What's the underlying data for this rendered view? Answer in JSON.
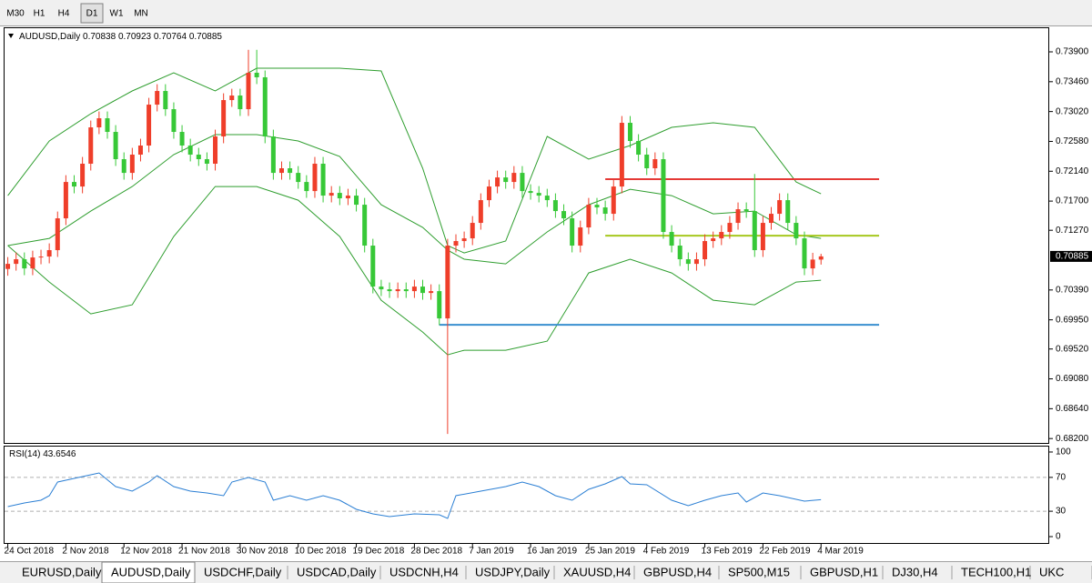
{
  "toolbar": {
    "timeframes": [
      "M30",
      "H1",
      "H4",
      "D1",
      "W1",
      "MN"
    ],
    "active": 3
  },
  "chart_data": [
    {
      "type": "candlestick",
      "title": "AUDUSD,Daily",
      "colors": {
        "up": "#ef3e2a",
        "down": "#37c837"
      },
      "candles": [
        [
          0.707,
          0.70875,
          0.706,
          0.70775
        ],
        [
          0.70775,
          0.70943,
          0.70675,
          0.70843
        ],
        [
          0.70843,
          0.70943,
          0.70608,
          0.70708
        ],
        [
          0.70708,
          0.70969,
          0.70608,
          0.70869
        ],
        [
          0.70869,
          0.70983,
          0.70769,
          0.70883
        ],
        [
          0.70883,
          0.71077,
          0.70783,
          0.70977
        ],
        [
          0.70977,
          0.71546,
          0.70877,
          0.71446
        ],
        [
          0.71446,
          0.72082,
          0.71346,
          0.71982
        ],
        [
          0.71982,
          0.72082,
          0.71815,
          0.71915
        ],
        [
          0.71915,
          0.72351,
          0.71815,
          0.72251
        ],
        [
          0.72251,
          0.72887,
          0.72151,
          0.72787
        ],
        [
          0.72787,
          0.73021,
          0.72687,
          0.72921
        ],
        [
          0.72921,
          0.73021,
          0.7262,
          0.7272
        ],
        [
          0.7272,
          0.7282,
          0.72218,
          0.72318
        ],
        [
          0.72318,
          0.72418,
          0.72016,
          0.72116
        ],
        [
          0.72116,
          0.72485,
          0.72016,
          0.72385
        ],
        [
          0.72385,
          0.72619,
          0.72285,
          0.72519
        ],
        [
          0.72519,
          0.73222,
          0.72419,
          0.73122
        ],
        [
          0.73122,
          0.73423,
          0.73022,
          0.73323
        ],
        [
          0.73323,
          0.73423,
          0.72955,
          0.73055
        ],
        [
          0.73055,
          0.73155,
          0.7262,
          0.7272
        ],
        [
          0.7272,
          0.7282,
          0.72419,
          0.72519
        ],
        [
          0.72519,
          0.72619,
          0.72285,
          0.72385
        ],
        [
          0.72385,
          0.72485,
          0.72218,
          0.72318
        ],
        [
          0.72318,
          0.72418,
          0.72151,
          0.72251
        ],
        [
          0.72251,
          0.72753,
          0.72151,
          0.72653
        ],
        [
          0.72653,
          0.73289,
          0.72553,
          0.73189
        ],
        [
          0.73189,
          0.73356,
          0.73089,
          0.73256
        ],
        [
          0.73256,
          0.73356,
          0.72955,
          0.73055
        ],
        [
          0.73055,
          0.7393,
          0.72955,
          0.73592
        ],
        [
          0.73592,
          0.7393,
          0.73425,
          0.73525
        ],
        [
          0.73525,
          0.73625,
          0.72553,
          0.72653
        ],
        [
          0.72653,
          0.72753,
          0.72016,
          0.72116
        ],
        [
          0.72116,
          0.72284,
          0.72016,
          0.72184
        ],
        [
          0.72184,
          0.72284,
          0.72016,
          0.72116
        ],
        [
          0.72116,
          0.72216,
          0.71882,
          0.71982
        ],
        [
          0.71982,
          0.72082,
          0.71748,
          0.71848
        ],
        [
          0.71848,
          0.72351,
          0.71748,
          0.72251
        ],
        [
          0.72251,
          0.72351,
          0.71681,
          0.71781
        ],
        [
          0.71781,
          0.71921,
          0.71681,
          0.71821
        ],
        [
          0.71821,
          0.71921,
          0.71641,
          0.71741
        ],
        [
          0.71741,
          0.71881,
          0.71641,
          0.71781
        ],
        [
          0.71781,
          0.71881,
          0.71547,
          0.71647
        ],
        [
          0.71647,
          0.71747,
          0.70944,
          0.71044
        ],
        [
          0.71044,
          0.71144,
          0.7034,
          0.7044
        ],
        [
          0.7044,
          0.7054,
          0.703,
          0.704
        ],
        [
          0.704,
          0.705,
          0.70273,
          0.70373
        ],
        [
          0.70373,
          0.705,
          0.70273,
          0.704
        ],
        [
          0.704,
          0.705,
          0.70273,
          0.70373
        ],
        [
          0.70373,
          0.7054,
          0.70273,
          0.7044
        ],
        [
          0.7044,
          0.7054,
          0.70246,
          0.70346
        ],
        [
          0.70346,
          0.70473,
          0.70246,
          0.70373
        ],
        [
          0.70373,
          0.70473,
          0.69871,
          0.69971
        ],
        [
          0.69971,
          0.71144,
          0.68268,
          0.71044
        ],
        [
          0.71044,
          0.71211,
          0.70944,
          0.71111
        ],
        [
          0.71111,
          0.71251,
          0.71011,
          0.71151
        ],
        [
          0.71151,
          0.71479,
          0.71051,
          0.71379
        ],
        [
          0.71379,
          0.71814,
          0.71279,
          0.71714
        ],
        [
          0.71714,
          0.72015,
          0.71614,
          0.71915
        ],
        [
          0.71915,
          0.72149,
          0.71815,
          0.72049
        ],
        [
          0.72049,
          0.72149,
          0.71882,
          0.71982
        ],
        [
          0.71982,
          0.72216,
          0.71882,
          0.72116
        ],
        [
          0.72116,
          0.72216,
          0.71748,
          0.71848
        ],
        [
          0.71848,
          0.71948,
          0.71721,
          0.71821
        ],
        [
          0.71821,
          0.71921,
          0.71681,
          0.71781
        ],
        [
          0.71781,
          0.71881,
          0.71614,
          0.71714
        ],
        [
          0.71714,
          0.71814,
          0.71453,
          0.71553
        ],
        [
          0.71553,
          0.71653,
          0.71346,
          0.71446
        ],
        [
          0.71446,
          0.71546,
          0.70944,
          0.71044
        ],
        [
          0.71044,
          0.71412,
          0.70944,
          0.71312
        ],
        [
          0.71312,
          0.71747,
          0.71212,
          0.71647
        ],
        [
          0.71647,
          0.71747,
          0.71507,
          0.71607
        ],
        [
          0.71607,
          0.71707,
          0.71413,
          0.71513
        ],
        [
          0.71513,
          0.72015,
          0.71413,
          0.71915
        ],
        [
          0.71915,
          0.72954,
          0.71815,
          0.72854
        ],
        [
          0.72854,
          0.72954,
          0.72486,
          0.72586
        ],
        [
          0.72586,
          0.72686,
          0.72285,
          0.72385
        ],
        [
          0.72385,
          0.72485,
          0.72084,
          0.72184
        ],
        [
          0.72184,
          0.72418,
          0.72084,
          0.72318
        ],
        [
          0.72318,
          0.72418,
          0.71145,
          0.71245
        ],
        [
          0.71245,
          0.71345,
          0.70944,
          0.71044
        ],
        [
          0.71044,
          0.71144,
          0.70743,
          0.70843
        ],
        [
          0.70843,
          0.70943,
          0.70675,
          0.70775
        ],
        [
          0.70775,
          0.70943,
          0.70675,
          0.70843
        ],
        [
          0.70843,
          0.71211,
          0.70743,
          0.71111
        ],
        [
          0.71111,
          0.71251,
          0.71011,
          0.71151
        ],
        [
          0.71151,
          0.71345,
          0.71051,
          0.71245
        ],
        [
          0.71245,
          0.71479,
          0.71145,
          0.71379
        ],
        [
          0.71379,
          0.7168,
          0.71279,
          0.7158
        ],
        [
          0.7158,
          0.7168,
          0.71453,
          0.71553
        ],
        [
          0.71553,
          0.721,
          0.70877,
          0.70977
        ],
        [
          0.70977,
          0.71479,
          0.70877,
          0.71379
        ],
        [
          0.71379,
          0.71613,
          0.71279,
          0.71513
        ],
        [
          0.71513,
          0.71814,
          0.71413,
          0.71714
        ],
        [
          0.71714,
          0.71814,
          0.71279,
          0.71379
        ],
        [
          0.71379,
          0.71479,
          0.71051,
          0.71151
        ],
        [
          0.71151,
          0.71251,
          0.70608,
          0.70708
        ],
        [
          0.70708,
          0.70938,
          0.70608,
          0.70838
        ],
        [
          0.70838,
          0.70923,
          0.70764,
          0.70885
        ]
      ],
      "bands": {
        "color": "#2f9e2f",
        "x": [
          0,
          5,
          10,
          15,
          20,
          25,
          30,
          35,
          40,
          45,
          50,
          53,
          55,
          60,
          65,
          70,
          75,
          80,
          85,
          90,
          95,
          98
        ],
        "upper": [
          0.71781,
          0.72586,
          0.72988,
          0.73323,
          0.73592,
          0.73323,
          0.73659,
          0.73659,
          0.73659,
          0.73618,
          0.72184,
          0.71044,
          0.70936,
          0.71111,
          0.72653,
          0.72318,
          0.72519,
          0.72787,
          0.72854,
          0.72787,
          0.71982,
          0.71808
        ],
        "middle": [
          0.71044,
          0.71151,
          0.71553,
          0.71915,
          0.72385,
          0.7268,
          0.7268,
          0.72586,
          0.72358,
          0.71647,
          0.71312,
          0.70977,
          0.70843,
          0.70775,
          0.71245,
          0.71647,
          0.71875,
          0.71781,
          0.71513,
          0.71553,
          0.71205,
          0.71151
        ],
        "lower": [
          0.71044,
          0.70507,
          0.70038,
          0.70172,
          0.71178,
          0.71915,
          0.71915,
          0.71714,
          0.71178,
          0.70239,
          0.6977,
          0.69435,
          0.69502,
          0.69502,
          0.69636,
          0.70641,
          0.70843,
          0.70641,
          0.70239,
          0.70172,
          0.70507,
          0.70534
        ]
      },
      "levels": [
        {
          "value": 0.72023,
          "from": 72,
          "to": 105,
          "color": "#e53935"
        },
        {
          "value": 0.71191,
          "from": 72,
          "to": 105,
          "color": "#a6c81e"
        },
        {
          "value": 0.69877,
          "from": 52,
          "to": 105,
          "color": "#3a8fd0"
        }
      ],
      "xlim": [
        -0.5,
        125.5
      ],
      "xticks": [
        {
          "value": 0,
          "label": "24 Oct 2018"
        },
        {
          "value": 7,
          "label": "2 Nov 2018"
        },
        {
          "value": 14,
          "label": "12 Nov 2018"
        },
        {
          "value": 21,
          "label": "21 Nov 2018"
        },
        {
          "value": 28,
          "label": "30 Nov 2018"
        },
        {
          "value": 35,
          "label": "10 Dec 2018"
        },
        {
          "value": 42,
          "label": "19 Dec 2018"
        },
        {
          "value": 49,
          "label": "28 Dec 2018"
        },
        {
          "value": 56,
          "label": "7 Jan 2019"
        },
        {
          "value": 63,
          "label": "16 Jan 2019"
        },
        {
          "value": 70,
          "label": "25 Jan 2019"
        },
        {
          "value": 77,
          "label": "4 Feb 2019"
        },
        {
          "value": 84,
          "label": "13 Feb 2019"
        },
        {
          "value": 91,
          "label": "22 Feb 2019"
        },
        {
          "value": 98,
          "label": "4 Mar 2019"
        }
      ],
      "ylim": [
        0.68122,
        0.74262
      ],
      "yticks": [
        {
          "value": 0.739,
          "label": "0.73900"
        },
        {
          "value": 0.7346,
          "label": "0.73460"
        },
        {
          "value": 0.7302,
          "label": "0.73020"
        },
        {
          "value": 0.7258,
          "label": "0.72580"
        },
        {
          "value": 0.7214,
          "label": "0.72140"
        },
        {
          "value": 0.717,
          "label": "0.71700"
        },
        {
          "value": 0.7127,
          "label": "0.71270"
        },
        {
          "value": 0.7039,
          "label": "0.70390"
        },
        {
          "value": 0.6995,
          "label": "0.69950"
        },
        {
          "value": 0.6952,
          "label": "0.69520"
        },
        {
          "value": 0.6908,
          "label": "0.69080"
        },
        {
          "value": 0.6864,
          "label": "0.68640"
        },
        {
          "value": 0.682,
          "label": "0.68200"
        }
      ]
    },
    {
      "type": "line",
      "title": "RSI(14)",
      "color": "#2b7fd4",
      "x": [
        0,
        2,
        4,
        5,
        6,
        7,
        10,
        11,
        13,
        15,
        17,
        18,
        20,
        22,
        24,
        26,
        27,
        29,
        31,
        32,
        34,
        36,
        38,
        40,
        42,
        44,
        46,
        49,
        52,
        53,
        54,
        57,
        60,
        62,
        64,
        66,
        68,
        70,
        72,
        74,
        75,
        77,
        80,
        82,
        84,
        86,
        88,
        89,
        91,
        93,
        96,
        98
      ],
      "values": [
        35.5,
        39.8,
        43,
        48.4,
        64.5,
        66.7,
        73.1,
        75.3,
        59.1,
        53.8,
        64.5,
        72,
        59.1,
        53.8,
        51.6,
        48.4,
        64.5,
        69.9,
        64.5,
        43,
        48.4,
        43,
        48.4,
        43,
        32.3,
        26.9,
        23.7,
        26.9,
        25.8,
        21.5,
        48.4,
        53.8,
        59.1,
        64.5,
        59.1,
        48.4,
        43,
        55.9,
        62.4,
        71,
        62.4,
        61.3,
        43,
        36.6,
        43,
        48.4,
        51.6,
        40.9,
        51.6,
        48.4,
        41.9,
        43.6546
      ],
      "ylim": [
        -8.6,
        107.5
      ],
      "yticks": [
        100,
        70,
        30,
        0
      ],
      "dashed_levels": [
        70,
        30
      ]
    }
  ],
  "tabs": {
    "items": [
      "EURUSD,Daily",
      "AUDUSD,Daily",
      "USDCHF,Daily",
      "USDCAD,Daily",
      "USDCNH,H4",
      "USDJPY,Daily",
      "XAUUSD,H4",
      "GBPUSD,H4",
      "SP500,M15",
      "GBPUSD,H1",
      "DJ30,H4",
      "TECH100,H1",
      "UKC"
    ],
    "active": 1
  }
}
